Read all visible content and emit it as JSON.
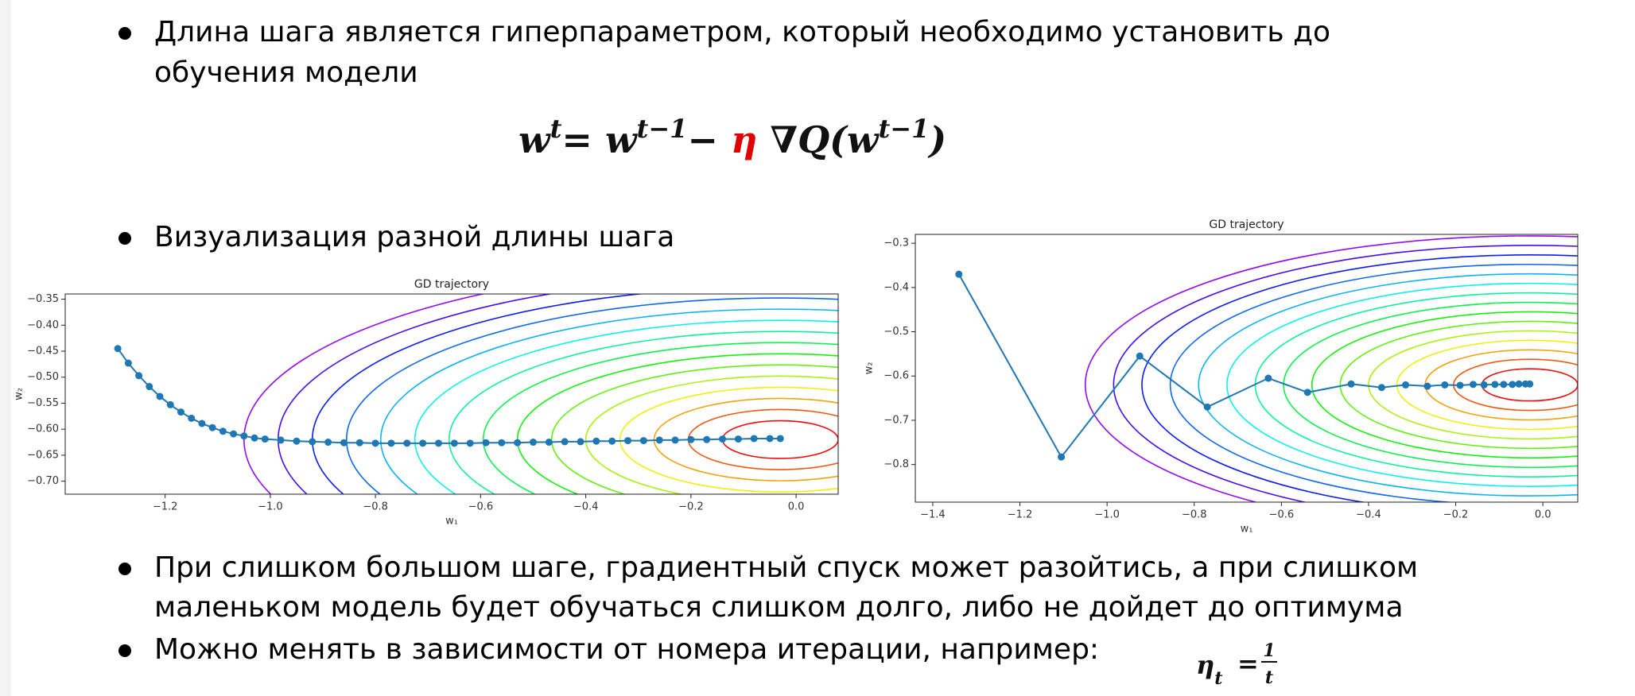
{
  "bullets": [
    {
      "lines": [
        "Длина шага является гиперпараметром, который необходимо установить до",
        "обучения модели"
      ]
    },
    {
      "lines": [
        "Визуализация разной длины шага"
      ]
    },
    {
      "lines": [
        "При слишком большом шаге, градиентный спуск может разойтись, а при слишком",
        "маленьком модель будет обучаться слишком долго, либо не дойдет до оптимума"
      ]
    },
    {
      "lines": [
        "Можно менять в зависимости от номера итерации, например:"
      ]
    }
  ],
  "formula": {
    "parts": [
      "w",
      "t",
      "= w",
      "t−1",
      "− ",
      "η",
      " ∇Q(w",
      "t−1",
      ")"
    ]
  },
  "formula2": {
    "parts": [
      "η",
      "t",
      "=",
      "1",
      "t"
    ]
  },
  "chart_data": [
    {
      "type": "line",
      "title": "GD trajectory",
      "x_label": "w₁",
      "y_label": "w₂",
      "color": "#1f77b4",
      "x": [
        -1.29,
        -1.27,
        -1.25,
        -1.23,
        -1.21,
        -1.19,
        -1.17,
        -1.15,
        -1.13,
        -1.11,
        -1.09,
        -1.07,
        -1.05,
        -1.03,
        -1.01,
        -0.98,
        -0.95,
        -0.92,
        -0.89,
        -0.86,
        -0.83,
        -0.8,
        -0.77,
        -0.74,
        -0.71,
        -0.68,
        -0.65,
        -0.62,
        -0.59,
        -0.56,
        -0.53,
        -0.5,
        -0.47,
        -0.44,
        -0.41,
        -0.38,
        -0.35,
        -0.32,
        -0.29,
        -0.26,
        -0.23,
        -0.2,
        -0.17,
        -0.14,
        -0.11,
        -0.08,
        -0.05,
        -0.03
      ],
      "values": [
        -0.445,
        -0.473,
        -0.497,
        -0.518,
        -0.537,
        -0.553,
        -0.567,
        -0.579,
        -0.589,
        -0.597,
        -0.604,
        -0.609,
        -0.613,
        -0.617,
        -0.619,
        -0.621,
        -0.623,
        -0.624,
        -0.625,
        -0.626,
        -0.626,
        -0.627,
        -0.627,
        -0.627,
        -0.627,
        -0.627,
        -0.627,
        -0.627,
        -0.626,
        -0.626,
        -0.626,
        -0.625,
        -0.625,
        -0.624,
        -0.624,
        -0.623,
        -0.623,
        -0.622,
        -0.622,
        -0.621,
        -0.621,
        -0.62,
        -0.62,
        -0.619,
        -0.619,
        -0.618,
        -0.618,
        -0.618
      ],
      "xlim": [
        -1.39,
        0.08
      ],
      "ylim": [
        -0.725,
        -0.34
      ],
      "xticks": [
        {
          "value": -1.2,
          "label": "−1.2"
        },
        {
          "value": -1.0,
          "label": "−1.0"
        },
        {
          "value": -0.8,
          "label": "−0.8"
        },
        {
          "value": -0.6,
          "label": "−0.6"
        },
        {
          "value": -0.4,
          "label": "−0.4"
        },
        {
          "value": -0.2,
          "label": "−0.2"
        },
        {
          "value": 0,
          "label": "0.0"
        }
      ],
      "yticks": [
        {
          "value": -0.35,
          "label": "−0.35"
        },
        {
          "value": -0.4,
          "label": "−0.40"
        },
        {
          "value": -0.45,
          "label": "−0.45"
        },
        {
          "value": -0.5,
          "label": "−0.50"
        },
        {
          "value": -0.55,
          "label": "−0.55"
        },
        {
          "value": -0.6,
          "label": "−0.60"
        },
        {
          "value": -0.65,
          "label": "−0.65"
        },
        {
          "value": -0.7,
          "label": "−0.70"
        }
      ]
    },
    {
      "type": "line",
      "title": "GD trajectory",
      "x_label": "w₁",
      "y_label": "w₂",
      "color": "#1f77b4",
      "x": [
        -1.34,
        -1.105,
        -0.925,
        -0.77,
        -0.63,
        -0.54,
        -0.44,
        -0.37,
        -0.315,
        -0.265,
        -0.225,
        -0.19,
        -0.16,
        -0.135,
        -0.11,
        -0.09,
        -0.07,
        -0.055,
        -0.04,
        -0.03
      ],
      "values": [
        -0.37,
        -0.783,
        -0.555,
        -0.67,
        -0.605,
        -0.637,
        -0.618,
        -0.626,
        -0.62,
        -0.623,
        -0.62,
        -0.621,
        -0.619,
        -0.62,
        -0.619,
        -0.619,
        -0.619,
        -0.618,
        -0.618,
        -0.618
      ],
      "xlim": [
        -1.44,
        0.08
      ],
      "ylim": [
        -0.885,
        -0.28
      ],
      "xticks": [
        {
          "value": -1.4,
          "label": "−1.4"
        },
        {
          "value": -1.2,
          "label": "−1.2"
        },
        {
          "value": -1.0,
          "label": "−1.0"
        },
        {
          "value": -0.8,
          "label": "−0.8"
        },
        {
          "value": -0.6,
          "label": "−0.6"
        },
        {
          "value": -0.4,
          "label": "−0.4"
        },
        {
          "value": -0.2,
          "label": "−0.2"
        },
        {
          "value": 0,
          "label": "0.0"
        }
      ],
      "yticks": [
        {
          "value": -0.3,
          "label": "−0.3"
        },
        {
          "value": -0.4,
          "label": "−0.4"
        },
        {
          "value": -0.5,
          "label": "−0.5"
        },
        {
          "value": -0.6,
          "label": "−0.6"
        },
        {
          "value": -0.7,
          "label": "−0.7"
        },
        {
          "value": -0.8,
          "label": "−0.8"
        }
      ]
    }
  ]
}
